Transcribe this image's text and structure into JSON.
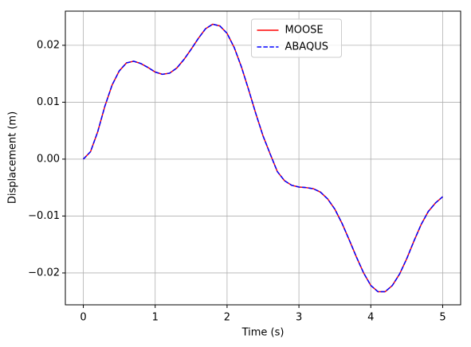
{
  "chart_data": {
    "type": "line",
    "xlabel": "Time (s)",
    "ylabel": "Displacement (m)",
    "x": [
      0,
      0.1,
      0.2,
      0.3,
      0.4,
      0.5,
      0.6,
      0.7,
      0.8,
      0.9,
      1.0,
      1.1,
      1.2,
      1.3,
      1.4,
      1.5,
      1.6,
      1.7,
      1.8,
      1.9,
      2.0,
      2.1,
      2.2,
      2.3,
      2.4,
      2.5,
      2.6,
      2.7,
      2.8,
      2.9,
      3.0,
      3.1,
      3.2,
      3.3,
      3.4,
      3.5,
      3.6,
      3.7,
      3.8,
      3.9,
      4.0,
      4.1,
      4.2,
      4.3,
      4.4,
      4.5,
      4.6,
      4.7,
      4.8,
      4.9,
      5.0
    ],
    "series": [
      {
        "name": "MOOSE",
        "color": "#ff0000",
        "linestyle": "solid",
        "values": [
          0,
          0.0013,
          0.0048,
          0.0093,
          0.013,
          0.0155,
          0.0169,
          0.0172,
          0.0168,
          0.0161,
          0.0153,
          0.0149,
          0.0151,
          0.016,
          0.0175,
          0.0193,
          0.0212,
          0.0229,
          0.0237,
          0.0234,
          0.0221,
          0.0196,
          0.0162,
          0.0122,
          0.008,
          0.0041,
          0.0009,
          -0.0022,
          -0.0038,
          -0.0046,
          -0.0049,
          -0.005,
          -0.0052,
          -0.0058,
          -0.007,
          -0.0088,
          -0.0113,
          -0.0142,
          -0.0172,
          -0.02,
          -0.0222,
          -0.0233,
          -0.0233,
          -0.0222,
          -0.0202,
          -0.0175,
          -0.0144,
          -0.0115,
          -0.0092,
          -0.0077,
          -0.0066
        ]
      },
      {
        "name": "ABAQUS",
        "color": "#0000ff",
        "linestyle": "dashed",
        "values": [
          0,
          0.0013,
          0.0048,
          0.0093,
          0.013,
          0.0155,
          0.0169,
          0.0172,
          0.0168,
          0.0161,
          0.0153,
          0.0149,
          0.0151,
          0.016,
          0.0175,
          0.0193,
          0.0212,
          0.0229,
          0.0237,
          0.0234,
          0.0221,
          0.0196,
          0.0162,
          0.0122,
          0.008,
          0.0041,
          0.0009,
          -0.0022,
          -0.0038,
          -0.0046,
          -0.0049,
          -0.005,
          -0.0052,
          -0.0058,
          -0.007,
          -0.0088,
          -0.0113,
          -0.0142,
          -0.0172,
          -0.02,
          -0.0222,
          -0.0233,
          -0.0233,
          -0.0222,
          -0.0202,
          -0.0175,
          -0.0144,
          -0.0115,
          -0.0092,
          -0.0077,
          -0.0066
        ]
      }
    ],
    "xlim": [
      -0.25,
      5.25
    ],
    "xticks": [
      0,
      1,
      2,
      3,
      4,
      5
    ],
    "ylim": [
      -0.0256,
      0.026
    ],
    "yticks": [
      {
        "value": -0.02,
        "label": "−0.02"
      },
      {
        "value": -0.01,
        "label": "−0.01"
      },
      {
        "value": 0,
        "label": "0.00"
      },
      {
        "value": 0.01,
        "label": "0.01"
      },
      {
        "value": 0.02,
        "label": "0.02"
      }
    ],
    "grid": true,
    "legend": "upper center"
  }
}
